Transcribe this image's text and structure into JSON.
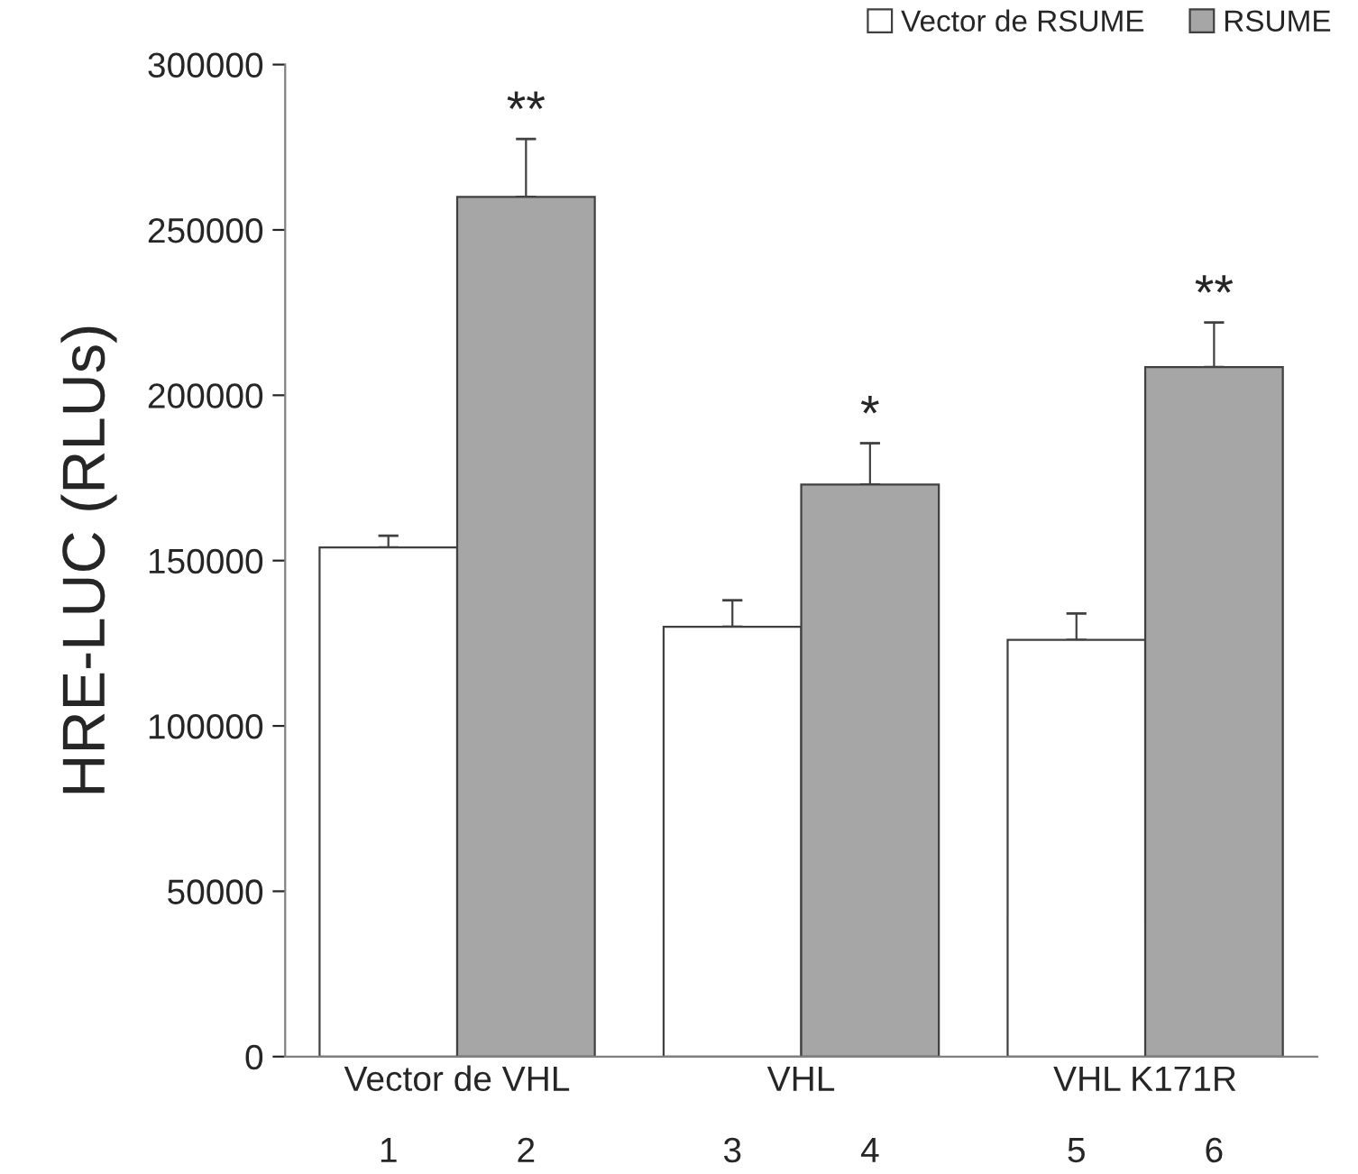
{
  "chart_data": {
    "type": "bar",
    "ylabel": "HRE-LUC (RLUs)",
    "categories": [
      "Vector de VHL",
      "VHL",
      "VHL K171R"
    ],
    "series": [
      {
        "name": "Vector de RSUME",
        "color": "#ffffff",
        "values": [
          154000,
          130000,
          126000
        ],
        "errors": [
          [
            154000,
            157500
          ],
          [
            130000,
            138000
          ],
          [
            126000,
            134000
          ]
        ]
      },
      {
        "name": "RSUME",
        "color": "#a6a6a6",
        "values": [
          260000,
          173000,
          208500
        ],
        "errors": [
          [
            260000,
            277500
          ],
          [
            173000,
            185500
          ],
          [
            208500,
            222000
          ]
        ]
      }
    ],
    "ylim": [
      0,
      300000
    ],
    "yticks": [
      0,
      50000,
      100000,
      150000,
      200000,
      250000,
      300000
    ],
    "legend": "top right",
    "grid": false,
    "annotations": [
      "1",
      "2",
      "3",
      "4",
      "5",
      "6",
      "**",
      "*",
      "**"
    ]
  }
}
